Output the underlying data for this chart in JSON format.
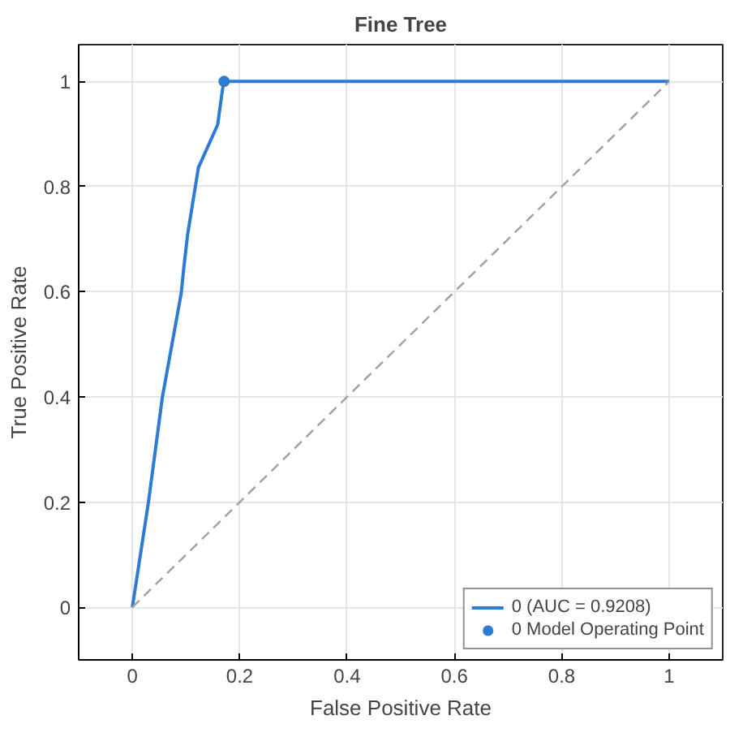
{
  "chart_data": {
    "type": "line",
    "title": "Fine Tree",
    "xlabel": "False Positive Rate",
    "ylabel": "True Positive Rate",
    "xlim": [
      -0.1,
      1.1
    ],
    "ylim": [
      -0.1,
      1.07
    ],
    "xticks": [
      0,
      0.2,
      0.4,
      0.6,
      0.8,
      1
    ],
    "yticks": [
      0,
      0.2,
      0.4,
      0.6,
      0.8,
      1
    ],
    "grid": true,
    "legend": "bottom right",
    "marker": "none",
    "series": [
      {
        "name": "0 (AUC = 0.9208)",
        "color": "#2e7bd4",
        "line_style": "solid",
        "x": [
          0,
          0.03,
          0.056,
          0.08,
          0.091,
          0.096,
          0.103,
          0.123,
          0.159,
          0.168,
          0.171,
          1
        ],
        "values": [
          0,
          0.2,
          0.4,
          0.535,
          0.597,
          0.647,
          0.709,
          0.836,
          0.918,
          0.985,
          1,
          1
        ]
      },
      {
        "name": "0 Model Operating Point",
        "type": "scatter",
        "marker": "circle",
        "color": "#2e7bd4",
        "x": [
          0.171
        ],
        "values": [
          1
        ]
      },
      {
        "type": "line",
        "color": "#a0a0a0",
        "line_style": "dashed",
        "x": [
          0,
          1
        ],
        "values": [
          0,
          1
        ]
      }
    ]
  }
}
